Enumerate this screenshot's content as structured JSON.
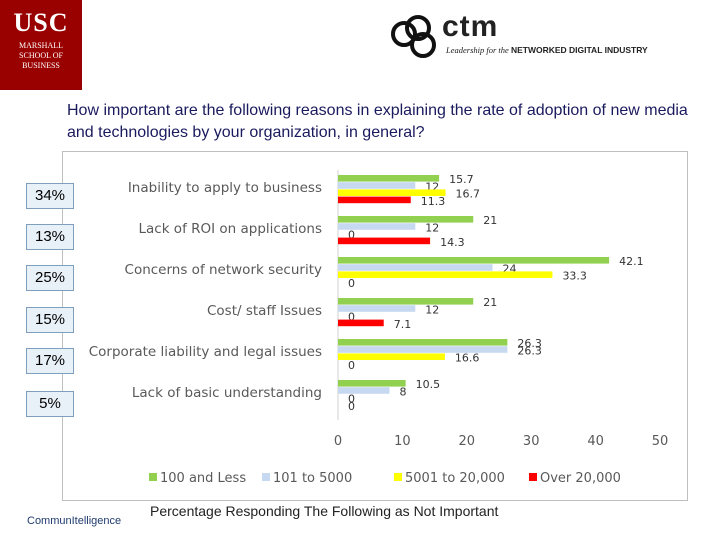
{
  "header": {
    "usc_logo_big": "USC",
    "usc_logo_line1": "MARSHALL",
    "usc_logo_line2": "SCHOOL OF",
    "usc_logo_line3": "BUSINESS",
    "ctm_logo_word": "ctm",
    "ctm_tagline_italic": "Leadership for the ",
    "ctm_tagline_bold": "NETWORKED DIGITAL INDUSTRY"
  },
  "question": "How important are the following reasons in explaining the rate of adoption of new media and technologies by your organization, in general?",
  "side_percentages": [
    "34%",
    "13%",
    "25%",
    "15%",
    "17%",
    "5%"
  ],
  "footer": {
    "brand": "CommunItelligence",
    "note": "Percentage Responding The Following as Not Important"
  },
  "colors": {
    "usc_red": "#990000",
    "s1": "#92d050",
    "s2": "#c6d9f1",
    "s3": "#ffff00",
    "s4": "#ff0000"
  },
  "chart_data": {
    "type": "bar",
    "orientation": "horizontal",
    "categories": [
      "Inability to apply to business",
      "Lack of ROI on applications",
      "Concerns of network security",
      "Cost/ staff Issues",
      "Corporate liability and legal issues",
      "Lack of basic understanding"
    ],
    "series": [
      {
        "name": "100 and Less",
        "color": "#92d050",
        "values": [
          15.7,
          21,
          42.1,
          21,
          26.3,
          10.5
        ],
        "labels": [
          "15.7",
          "21",
          "42.1",
          "21",
          "26.3",
          "10.5"
        ]
      },
      {
        "name": "101 to 5000",
        "color": "#c6d9f1",
        "values": [
          12,
          12,
          24,
          12,
          26.3,
          8
        ],
        "labels": [
          "12",
          "12",
          "24",
          "12",
          "26.3",
          "8"
        ]
      },
      {
        "name": "5001 to 20,000",
        "color": "#ffff00",
        "values": [
          16.7,
          0,
          33.3,
          0,
          16.6,
          0
        ],
        "labels": [
          "16.7",
          "0",
          "33.3",
          "0",
          "16.6",
          "0"
        ]
      },
      {
        "name": "Over 20,000",
        "color": "#ff0000",
        "values": [
          11.3,
          14.3,
          0,
          7.1,
          0,
          0
        ],
        "labels": [
          "11.3",
          "14.3",
          "0",
          "7.1",
          "0",
          "0"
        ]
      }
    ],
    "xlim": [
      0,
      50
    ],
    "xticks": [
      "0",
      "10",
      "20",
      "30",
      "40",
      "50"
    ],
    "legend_position": "bottom"
  }
}
